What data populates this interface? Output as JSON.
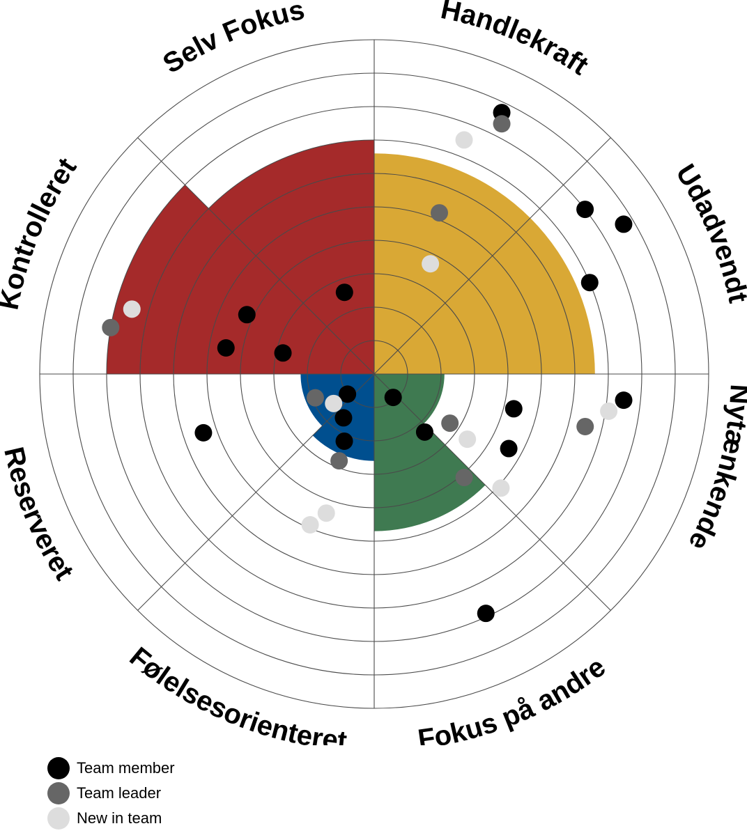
{
  "chart_data": {
    "type": "polar-scatter",
    "rings": 10,
    "sectors": [
      {
        "label": "Handlekraft",
        "start_deg": 270,
        "end_deg": 315
      },
      {
        "label": "Udadvendt",
        "start_deg": 315,
        "end_deg": 360
      },
      {
        "label": "Nytænkende",
        "start_deg": 0,
        "end_deg": 45
      },
      {
        "label": "Fokus på andre",
        "start_deg": 45,
        "end_deg": 90
      },
      {
        "label": "Følelsesorienteret",
        "start_deg": 90,
        "end_deg": 135
      },
      {
        "label": "Reserveret",
        "start_deg": 135,
        "end_deg": 180
      },
      {
        "label": "Kontrolleret",
        "start_deg": 180,
        "end_deg": 225
      },
      {
        "label": "Selv Fokus",
        "start_deg": 225,
        "end_deg": 270
      }
    ],
    "fills": [
      {
        "color": "#a52a2a",
        "arcs": [
          {
            "from": 180,
            "to": 225,
            "level": 8
          },
          {
            "from": 225,
            "to": 270,
            "level": 7
          }
        ]
      },
      {
        "color": "#d9a835",
        "arcs": [
          {
            "from": 270,
            "to": 315,
            "level": 6.6
          },
          {
            "from": 315,
            "to": 360,
            "level": 6.6
          }
        ]
      },
      {
        "color": "#3f7a51",
        "arcs": [
          {
            "from": 0,
            "to": 45,
            "level": 2.1
          },
          {
            "from": 45,
            "to": 90,
            "level": 4.7
          }
        ]
      },
      {
        "color": "#004f8f",
        "arcs": [
          {
            "from": 90,
            "to": 135,
            "level": 2.6
          },
          {
            "from": 135,
            "to": 180,
            "level": 2.2
          }
        ]
      }
    ],
    "series": [
      {
        "name": "Team member",
        "color": "#000000",
        "points": [
          {
            "angle": 296,
            "level": 8.7
          },
          {
            "angle": 193,
            "level": 2.8
          },
          {
            "angle": 329,
            "level": 8.7
          },
          {
            "angle": 322,
            "level": 8.0
          },
          {
            "angle": 190,
            "level": 4.5
          },
          {
            "angle": 205,
            "level": 4.2
          },
          {
            "angle": 250,
            "level": 2.6
          },
          {
            "angle": 337,
            "level": 7.0
          },
          {
            "angle": 6,
            "level": 7.5
          },
          {
            "angle": 14,
            "level": 4.3
          },
          {
            "angle": 51,
            "level": 0.9
          },
          {
            "angle": 29,
            "level": 4.6
          },
          {
            "angle": 143,
            "level": 1.0
          },
          {
            "angle": 114,
            "level": 2.2
          },
          {
            "angle": 125,
            "level": 1.6
          },
          {
            "angle": 49,
            "level": 2.3
          },
          {
            "angle": 65,
            "level": 7.9
          },
          {
            "angle": 161,
            "level": 5.4
          }
        ]
      },
      {
        "name": "Team leader",
        "color": "#666666",
        "points": [
          {
            "angle": 297,
            "level": 8.4
          },
          {
            "angle": 190,
            "level": 8.0
          },
          {
            "angle": 292,
            "level": 5.2
          },
          {
            "angle": 14,
            "level": 6.5
          },
          {
            "angle": 158,
            "level": 1.9
          },
          {
            "angle": 112,
            "level": 2.8
          },
          {
            "angle": 33,
            "level": 2.7
          },
          {
            "angle": 49,
            "level": 4.1
          }
        ]
      },
      {
        "name": "New in team",
        "color": "#dddddd",
        "points": [
          {
            "angle": 291,
            "level": 7.5
          },
          {
            "angle": 195,
            "level": 7.5
          },
          {
            "angle": 297,
            "level": 3.7
          },
          {
            "angle": 9,
            "level": 7.1
          },
          {
            "angle": 144,
            "level": 1.5
          },
          {
            "angle": 113,
            "level": 4.9
          },
          {
            "angle": 35,
            "level": 3.4
          },
          {
            "angle": 42,
            "level": 5.1
          },
          {
            "angle": 109,
            "level": 4.4
          }
        ]
      }
    ]
  }
}
